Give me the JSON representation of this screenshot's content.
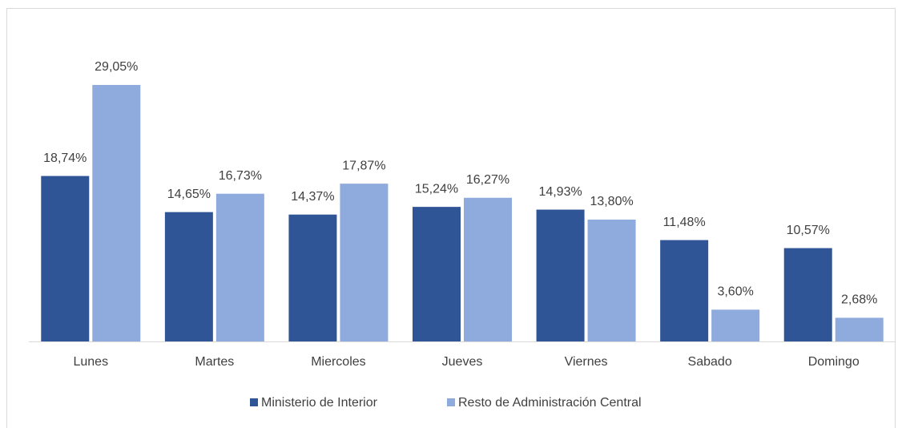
{
  "chart_data": {
    "type": "bar",
    "categories": [
      "Lunes",
      "Martes",
      "Miercoles",
      "Jueves",
      "Viernes",
      "Sabado",
      "Domingo"
    ],
    "series": [
      {
        "name": "Ministerio de Interior",
        "color": "#2f5597",
        "values": [
          18.74,
          14.65,
          14.37,
          15.24,
          14.93,
          11.48,
          10.57
        ],
        "value_labels": [
          "18,74%",
          "14,65%",
          "14,37%",
          "15,24%",
          "14,93%",
          "11,48%",
          "10,57%"
        ]
      },
      {
        "name": "Resto de Administración Central",
        "color": "#8faadc",
        "values": [
          29.05,
          16.73,
          17.87,
          16.27,
          13.8,
          3.6,
          2.68
        ],
        "value_labels": [
          "29,05%",
          "16,73%",
          "17,87%",
          "16,27%",
          "13,80%",
          "3,60%",
          "2,68%"
        ]
      }
    ],
    "legend": "bottom"
  }
}
